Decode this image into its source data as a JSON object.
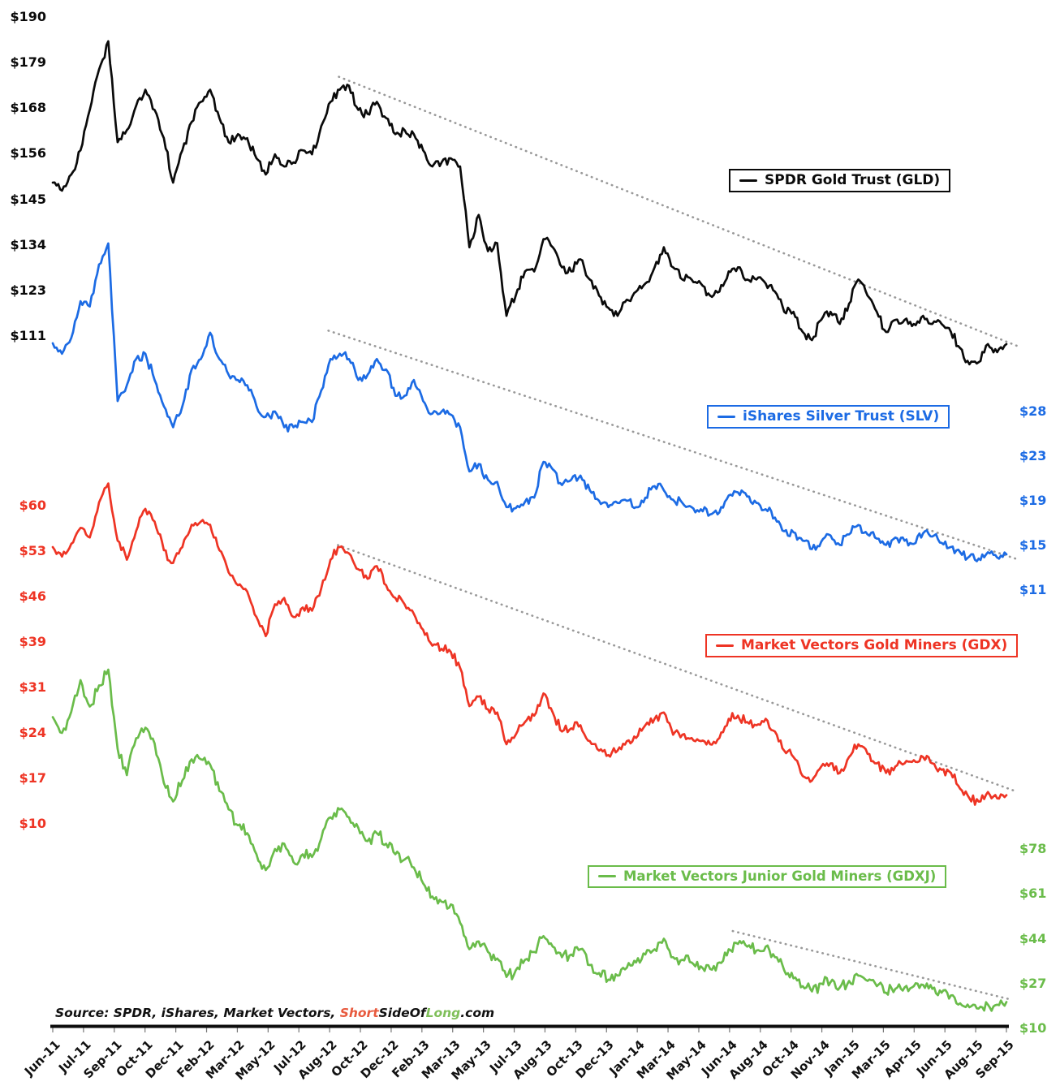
{
  "chart_data": {
    "type": "line",
    "title": "",
    "grid": false,
    "trendline_color": "#999999",
    "x_axis": {
      "rotation": -45,
      "labels": [
        "Jun-11",
        "Jul-11",
        "Sep-11",
        "Oct-11",
        "Dec-11",
        "Feb-12",
        "Mar-12",
        "May-12",
        "Jul-12",
        "Aug-12",
        "Oct-12",
        "Dec-12",
        "Feb-13",
        "Mar-13",
        "May-13",
        "Jul-13",
        "Aug-13",
        "Oct-13",
        "Dec-13",
        "Jan-14",
        "Mar-14",
        "May-14",
        "Jun-14",
        "Aug-14",
        "Oct-14",
        "Nov-14",
        "Jan-15",
        "Mar-15",
        "Apr-15",
        "Jun-15",
        "Aug-15",
        "Sep-15"
      ]
    },
    "series": [
      {
        "ticker": "GLD",
        "name": "SPDR Gold Trust (GLD)",
        "color": "#0a0a0a",
        "axis_side": "left",
        "axis_ticks": [
          "$190",
          "$179",
          "$168",
          "$156",
          "$145",
          "$134",
          "$123",
          "$111"
        ],
        "axis_tick_values": [
          190,
          179,
          168,
          156,
          145,
          134,
          123,
          111
        ],
        "trendline": {
          "from_frac": 0.3,
          "from_value": 175.2,
          "to_frac": 1.015,
          "to_value": 108.2
        },
        "values": [
          149,
          147,
          151,
          157,
          167,
          177,
          184,
          159,
          162,
          168,
          172,
          167,
          160,
          149,
          157,
          164,
          169,
          172,
          165,
          159,
          161,
          160,
          155,
          151,
          156,
          153,
          154,
          157,
          156,
          163,
          169,
          172,
          173,
          167,
          166,
          169,
          165,
          161,
          162,
          161,
          157,
          153,
          154,
          155,
          153,
          133,
          141,
          132,
          134,
          116,
          121,
          127,
          127,
          135,
          133,
          128,
          127,
          130,
          125,
          121,
          118,
          116,
          120,
          122,
          124,
          128,
          133,
          128,
          125,
          125,
          124,
          121,
          122,
          127,
          128,
          125,
          125,
          124,
          122,
          117,
          117,
          112,
          110,
          115,
          117,
          114,
          119,
          125,
          121,
          117,
          112,
          115,
          115,
          114,
          116,
          114,
          114,
          112,
          108,
          104,
          104.5,
          109,
          107,
          109
        ]
      },
      {
        "ticker": "SLV",
        "name": "iShares Silver Trust (SLV)",
        "color": "#1c6be4",
        "axis_side": "right",
        "axis_ticks": [
          "$28",
          "$23",
          "$19",
          "$15",
          "$11"
        ],
        "axis_tick_values": [
          28,
          23,
          19,
          15,
          11
        ],
        "trendline": {
          "from_frac": 0.289,
          "from_value": 35.7,
          "to_frac": 1.011,
          "to_value": 13.95
        },
        "values": [
          34.5,
          33.5,
          35,
          38.5,
          38,
          42,
          44,
          29,
          30.5,
          33,
          33.5,
          31,
          28.5,
          26.5,
          28.5,
          32,
          33,
          35.5,
          33,
          31.5,
          31,
          30.5,
          28.5,
          27.5,
          28,
          26.5,
          26.5,
          27,
          27,
          30,
          33,
          33.5,
          33,
          31,
          31.5,
          33,
          32,
          29.5,
          29.5,
          31,
          29,
          27.8,
          28,
          27.7,
          26.5,
          22.3,
          23,
          21.5,
          21.3,
          18.9,
          18.8,
          19.4,
          19.8,
          23.2,
          22.5,
          21,
          21.5,
          21.9,
          20.5,
          19.5,
          18.9,
          19.3,
          19.5,
          18.9,
          19.8,
          20.9,
          20.5,
          19.6,
          19.3,
          18.9,
          18.7,
          18.2,
          18.4,
          20,
          20.3,
          19.9,
          19.3,
          18.7,
          17.9,
          16.6,
          16.5,
          15.7,
          14.9,
          15.6,
          16.2,
          15.3,
          16.3,
          17.2,
          16.3,
          15.9,
          15.3,
          16,
          15.7,
          15.4,
          16.4,
          16.1,
          15.5,
          15.1,
          14.6,
          14.2,
          14,
          14.6,
          14.1,
          14.4
        ]
      },
      {
        "ticker": "GDX",
        "name": "Market Vectors Gold Miners (GDX)",
        "color": "#ee3424",
        "axis_side": "left",
        "axis_ticks": [
          "$60",
          "$53",
          "$46",
          "$39",
          "$31",
          "$24",
          "$17",
          "$10"
        ],
        "axis_tick_values": [
          60,
          53,
          46,
          39,
          31,
          24,
          17,
          10
        ],
        "trendline": {
          "from_frac": 0.299,
          "from_value": 53.8,
          "to_frac": 1.01,
          "to_value": 15.1
        },
        "values": [
          53.5,
          52,
          54,
          56.5,
          55,
          60.5,
          63.5,
          54.5,
          51.5,
          56,
          59.5,
          57.5,
          53,
          51,
          53.5,
          57,
          57.5,
          57,
          53,
          49.5,
          47.5,
          46.5,
          42.5,
          39.5,
          44.5,
          45.5,
          42.5,
          44,
          43.5,
          47,
          51.5,
          53.5,
          52.5,
          50,
          48.5,
          50.5,
          47.5,
          45.5,
          44.5,
          43,
          40.5,
          38,
          37.5,
          37,
          34.5,
          28.5,
          30,
          28,
          27.5,
          22.5,
          24,
          26,
          27,
          30.5,
          27.5,
          24.5,
          25,
          25.5,
          23,
          21.5,
          20.8,
          21.5,
          23,
          23.5,
          25.5,
          26.5,
          27.5,
          24,
          24,
          23.5,
          23,
          22.5,
          23.5,
          26.5,
          27,
          26,
          25.5,
          26.5,
          24.5,
          21.5,
          20.5,
          17.5,
          16.8,
          19,
          19.5,
          18,
          20.5,
          22.5,
          21,
          19.5,
          18,
          19,
          19.5,
          20,
          20.5,
          19.5,
          18.5,
          18,
          15.5,
          14,
          13.5,
          15,
          14,
          14.5
        ]
      },
      {
        "ticker": "GDXJ",
        "name": "Market Vectors Junior Gold Miners (GDXJ)",
        "color": "#6abc4a",
        "axis_side": "right",
        "axis_ticks": [
          "$78",
          "$61",
          "$44",
          "$27",
          "$10"
        ],
        "axis_tick_values": [
          78,
          61,
          44,
          27,
          10
        ],
        "trendline": {
          "from_frac": 0.713,
          "from_value": 46.9,
          "to_frac": 1.004,
          "to_value": 21.0
        },
        "values": [
          128,
          122,
          130,
          142,
          132,
          140,
          146,
          116,
          106,
          120,
          124,
          118,
          103,
          96,
          104,
          112,
          112,
          110,
          100,
          93,
          87,
          84,
          76,
          70,
          78,
          80,
          73,
          76,
          75,
          82,
          90,
          93,
          90,
          86,
          81,
          84,
          80,
          76,
          74,
          71,
          65,
          60,
          58,
          57,
          50,
          40,
          43,
          39,
          36.5,
          29.5,
          32,
          36,
          39,
          45,
          41,
          37,
          38,
          40,
          34,
          31,
          28.5,
          30,
          33,
          35,
          38,
          40,
          44,
          37,
          36,
          35,
          33.5,
          32.5,
          35,
          40,
          42,
          41,
          39.5,
          41,
          37,
          32,
          29,
          26,
          24,
          27,
          27.5,
          25.5,
          28,
          30,
          28,
          26,
          23.5,
          25,
          25.5,
          26,
          26.5,
          25,
          23.5,
          22.5,
          19.5,
          18,
          17.5,
          19,
          19,
          20
        ]
      }
    ]
  },
  "source": {
    "parts": [
      {
        "text": "Source: SPDR, iShares, Market Vectors, ",
        "color": "#111111"
      },
      {
        "text": "Short",
        "color": "#e85a3e"
      },
      {
        "text": "SideOf",
        "color": "#111111"
      },
      {
        "text": "Long",
        "color": "#7fbf5a"
      },
      {
        "text": ".com",
        "color": "#111111"
      }
    ]
  }
}
